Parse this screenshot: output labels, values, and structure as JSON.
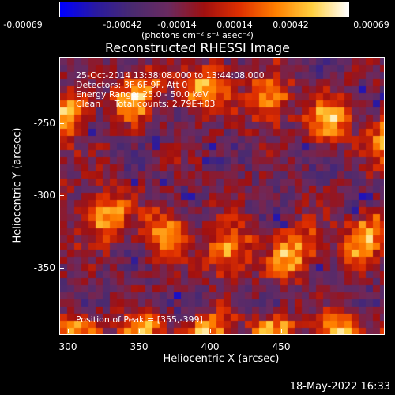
{
  "colorbar": {
    "tick_labels": [
      "-0.00069",
      "-0.00042",
      "-0.00014",
      "0.00014",
      "0.00042",
      "0.00069"
    ],
    "units": "(photons cm⁻² s⁻¹ asec⁻²)",
    "colormap": [
      "#0000ff",
      "#2a1aa0",
      "#4a2a70",
      "#6a2a60",
      "#a01010",
      "#e03000",
      "#ff8000",
      "#ffd040",
      "#ffffff"
    ]
  },
  "title": "Reconstructed RHESSI Image",
  "info_lines": [
    "25-Oct-2014 13:38:08.000 to 13:44:08.000",
    "Detectors: 3F 6F 9F, Att 0",
    "Energy Range: 25.0 - 50.0 keV",
    "Clean     Total counts: 2.79E+03"
  ],
  "peak_text": "Position of Peak = [355,-399]",
  "axes": {
    "x_title": "Heliocentric X (arcsec)",
    "y_title": "Heliocentric Y (arcsec)",
    "x_ticks": [
      "300",
      "350",
      "400",
      "450"
    ],
    "y_ticks": [
      "-250",
      "-300",
      "-350"
    ],
    "x_range": [
      295,
      485
    ],
    "y_range": [
      -395,
      -233
    ]
  },
  "footer": "18-May-2022 16:33"
}
